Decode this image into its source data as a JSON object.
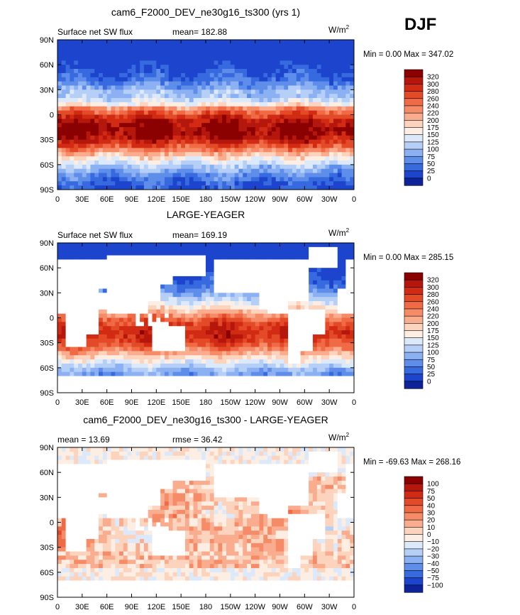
{
  "season": "DJF",
  "units_base": "W/m",
  "units_exp": "2",
  "lat_ticks": [
    "90N",
    "60N",
    "30N",
    "0",
    "30S",
    "60S",
    "90S"
  ],
  "lon_ticks": [
    "0",
    "30E",
    "60E",
    "90E",
    "120E",
    "150E",
    "180",
    "150W",
    "120W",
    "90W",
    "60W",
    "30W",
    "0"
  ],
  "chart_data": [
    {
      "type": "heatmap",
      "title": "cam6_F2000_DEV_ne30g16_ts300 (yrs 1)",
      "subtitle_left": "Surface net SW flux",
      "stat1_label": "mean=",
      "stat1_value": "182.88",
      "min_label": "Min =",
      "min_value": "0.00",
      "max_label": "Max =",
      "max_value": "347.02",
      "levels": [
        "320",
        "300",
        "280",
        "260",
        "240",
        "220",
        "200",
        "175",
        "150",
        "125",
        "100",
        "75",
        "50",
        "25",
        "0"
      ],
      "colors": [
        "#8b0000",
        "#b5170d",
        "#d22b14",
        "#e34a27",
        "#ef6a45",
        "#f58b67",
        "#f9ac8e",
        "#fcd3bd",
        "#fdeee3",
        "#dce9fb",
        "#b6cff7",
        "#8cb1f2",
        "#5f8eea",
        "#3769df",
        "#1d44cc",
        "#0e2399"
      ],
      "pattern": "model"
    },
    {
      "type": "heatmap",
      "title": "LARGE-YEAGER",
      "subtitle_left": "Surface net SW flux",
      "stat1_label": "mean=",
      "stat1_value": "169.19",
      "min_label": "Min =",
      "min_value": "0.00",
      "max_label": "Max =",
      "max_value": "285.15",
      "levels": [
        "320",
        "300",
        "280",
        "260",
        "240",
        "220",
        "200",
        "175",
        "150",
        "125",
        "100",
        "75",
        "50",
        "25",
        "0"
      ],
      "colors": [
        "#8b0000",
        "#b5170d",
        "#d22b14",
        "#e34a27",
        "#ef6a45",
        "#f58b67",
        "#f9ac8e",
        "#fcd3bd",
        "#fdeee3",
        "#dce9fb",
        "#b6cff7",
        "#8cb1f2",
        "#5f8eea",
        "#3769df",
        "#1d44cc",
        "#0e2399"
      ],
      "pattern": "obs"
    },
    {
      "type": "heatmap",
      "title": "cam6_F2000_DEV_ne30g16_ts300 - LARGE-YEAGER",
      "subtitle_left": "",
      "stat1_label": "mean =",
      "stat1_value": "13.69",
      "stat2_label": "rmse =",
      "stat2_value": "36.42",
      "min_label": "Min =",
      "min_value": "-69.63",
      "max_label": "Max =",
      "max_value": "268.16",
      "levels": [
        "100",
        "75",
        "50",
        "40",
        "30",
        "20",
        "10",
        "0",
        "−10",
        "−20",
        "−30",
        "−40",
        "−50",
        "−75",
        "−100"
      ],
      "colors": [
        "#8b0000",
        "#b5170d",
        "#d22b14",
        "#e34a27",
        "#ef6a45",
        "#f58b67",
        "#f9ac8e",
        "#fcd3bd",
        "#fdeee3",
        "#dce9fb",
        "#b6cff7",
        "#8cb1f2",
        "#5f8eea",
        "#3769df",
        "#1d44cc",
        "#0e2399"
      ],
      "pattern": "diff"
    }
  ]
}
